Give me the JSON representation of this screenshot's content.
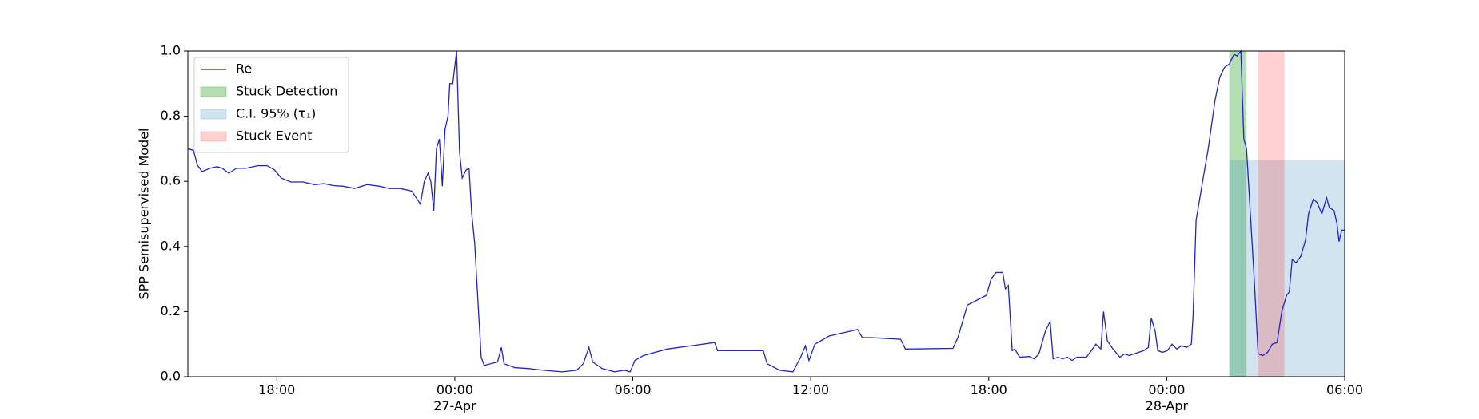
{
  "chart_data": {
    "type": "line",
    "ylabel": "SPP Semisupervised Model",
    "xlim": [
      15,
      54
    ],
    "ylim": [
      0,
      1
    ],
    "xticks": [
      {
        "value": 18,
        "label": "18:00"
      },
      {
        "value": 24,
        "label": "00:00\n27-Apr"
      },
      {
        "value": 30,
        "label": "06:00"
      },
      {
        "value": 36,
        "label": "12:00"
      },
      {
        "value": 42,
        "label": "18:00"
      },
      {
        "value": 48,
        "label": "00:00\n28-Apr"
      },
      {
        "value": 54,
        "label": "06:00"
      }
    ],
    "yticks": [
      0.0,
      0.2,
      0.4,
      0.6,
      0.8,
      1.0
    ],
    "yticks_labels": [
      "0.0",
      "0.2",
      "0.4",
      "0.6",
      "0.8",
      "1.0"
    ],
    "legend": "upper left",
    "series": [
      {
        "name": "Re",
        "color": "#2222cc",
        "x": [
          15.0,
          15.19,
          15.32,
          15.48,
          15.74,
          15.99,
          16.16,
          16.38,
          16.64,
          16.96,
          17.35,
          17.67,
          17.92,
          18.15,
          18.47,
          18.89,
          19.27,
          19.59,
          19.91,
          20.24,
          20.62,
          21.04,
          21.46,
          21.78,
          22.16,
          22.55,
          22.84,
          22.97,
          23.1,
          23.19,
          23.29,
          23.38,
          23.48,
          23.58,
          23.67,
          23.77,
          23.83,
          23.93,
          24.06,
          24.16,
          24.25,
          24.38,
          24.48,
          24.57,
          24.67,
          24.8,
          24.89,
          24.99,
          25.22,
          25.44,
          25.57,
          25.66,
          26.02,
          26.5,
          26.98,
          27.62,
          28.11,
          28.33,
          28.52,
          28.65,
          28.97,
          29.39,
          29.71,
          29.91,
          30.07,
          30.36,
          31.16,
          31.96,
          32.76,
          32.86,
          34.4,
          34.53,
          34.95,
          35.4,
          35.66,
          35.82,
          35.94,
          36.14,
          36.62,
          37.1,
          37.58,
          37.74,
          38.06,
          39.03,
          39.19,
          40.79,
          40.96,
          41.28,
          41.6,
          41.92,
          42.08,
          42.24,
          42.47,
          42.56,
          42.66,
          42.79,
          42.88,
          43.04,
          43.37,
          43.53,
          43.69,
          43.91,
          44.07,
          44.17,
          44.33,
          44.49,
          44.65,
          44.81,
          44.97,
          45.29,
          45.46,
          45.61,
          45.78,
          45.87,
          46.0,
          46.19,
          46.42,
          46.58,
          46.74,
          47.06,
          47.22,
          47.38,
          47.48,
          47.61,
          47.7,
          47.86,
          48.02,
          48.18,
          48.34,
          48.5,
          48.67,
          48.83,
          48.89,
          48.99,
          49.21,
          49.4,
          49.63,
          49.79,
          49.95,
          50.11,
          50.27,
          50.37,
          50.5,
          50.6,
          50.69,
          50.82,
          50.95,
          51.08,
          51.24,
          51.4,
          51.56,
          51.72,
          51.88,
          52.04,
          52.13,
          52.23,
          52.36,
          52.52,
          52.68,
          52.78,
          52.94,
          53.07,
          53.23,
          53.39,
          53.48,
          53.64,
          53.74,
          53.81,
          53.9,
          54.0
        ],
        "values": [
          0.7,
          0.695,
          0.65,
          0.63,
          0.64,
          0.645,
          0.64,
          0.625,
          0.64,
          0.64,
          0.648,
          0.648,
          0.635,
          0.61,
          0.598,
          0.598,
          0.59,
          0.593,
          0.587,
          0.585,
          0.578,
          0.59,
          0.585,
          0.578,
          0.578,
          0.57,
          0.53,
          0.6,
          0.625,
          0.6,
          0.51,
          0.7,
          0.73,
          0.585,
          0.76,
          0.8,
          0.9,
          0.9,
          1.0,
          0.69,
          0.61,
          0.635,
          0.64,
          0.5,
          0.41,
          0.2,
          0.06,
          0.035,
          0.04,
          0.045,
          0.09,
          0.04,
          0.028,
          0.025,
          0.02,
          0.015,
          0.02,
          0.04,
          0.09,
          0.045,
          0.025,
          0.015,
          0.02,
          0.015,
          0.05,
          0.065,
          0.085,
          0.095,
          0.105,
          0.08,
          0.08,
          0.04,
          0.02,
          0.015,
          0.06,
          0.095,
          0.05,
          0.1,
          0.125,
          0.135,
          0.145,
          0.12,
          0.12,
          0.115,
          0.085,
          0.087,
          0.12,
          0.22,
          0.235,
          0.25,
          0.3,
          0.32,
          0.32,
          0.27,
          0.28,
          0.08,
          0.085,
          0.06,
          0.062,
          0.055,
          0.07,
          0.14,
          0.17,
          0.055,
          0.06,
          0.055,
          0.06,
          0.05,
          0.06,
          0.06,
          0.08,
          0.1,
          0.085,
          0.2,
          0.11,
          0.085,
          0.06,
          0.07,
          0.065,
          0.075,
          0.08,
          0.09,
          0.18,
          0.14,
          0.08,
          0.075,
          0.08,
          0.1,
          0.085,
          0.095,
          0.09,
          0.1,
          0.19,
          0.48,
          0.6,
          0.7,
          0.85,
          0.92,
          0.95,
          0.96,
          0.99,
          0.985,
          1.0,
          0.73,
          0.7,
          0.5,
          0.3,
          0.07,
          0.065,
          0.075,
          0.1,
          0.105,
          0.2,
          0.25,
          0.26,
          0.36,
          0.35,
          0.37,
          0.42,
          0.5,
          0.545,
          0.535,
          0.5,
          0.55,
          0.52,
          0.51,
          0.47,
          0.415,
          0.45,
          0.45
        ]
      }
    ],
    "spans": [
      {
        "name": "Stuck Detection",
        "color": "#2ca02c",
        "alpha": 0.35,
        "x": [
          50.11,
          50.69
        ],
        "y": [
          0,
          1
        ]
      },
      {
        "name": "C.I. 95% (τ₁)",
        "color": "#1f77b4",
        "alpha": 0.2,
        "x": [
          50.11,
          54
        ],
        "y": [
          0,
          0.665
        ]
      },
      {
        "name": "Stuck Event",
        "color": "#ff0000",
        "alpha": 0.18,
        "x": [
          51.08,
          51.97
        ],
        "y": [
          0,
          1
        ]
      }
    ]
  }
}
